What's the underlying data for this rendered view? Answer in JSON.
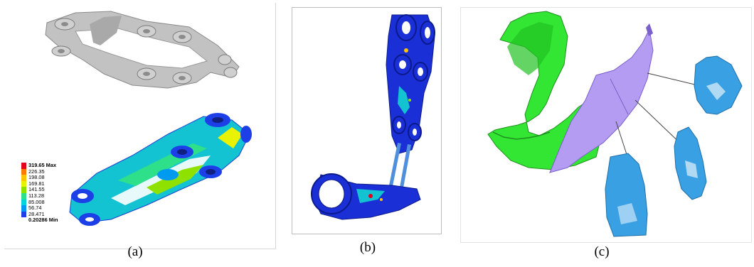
{
  "captions": {
    "a": "(a)",
    "b": "(b)",
    "c": "(c)"
  },
  "legend": {
    "max_value": "319.65",
    "max_label": "Max",
    "min_value": "0.20286",
    "min_label": "Min",
    "entries": [
      "226.35",
      "198.08",
      "169.81",
      "141.55",
      "113.28",
      "85.008",
      "56.74",
      "28.471"
    ],
    "colors": [
      "#e4001a",
      "#ff7a00",
      "#ffc400",
      "#e9f200",
      "#8fe200",
      "#2fe08a",
      "#00d3d9",
      "#009bf0",
      "#1d3fe8"
    ]
  },
  "colors": {
    "mandible_green": "#33e633",
    "implant_purple": "#b39cf2",
    "scan_blue": "#3aa0e4",
    "mesh_gray": "#b5b5b5"
  }
}
